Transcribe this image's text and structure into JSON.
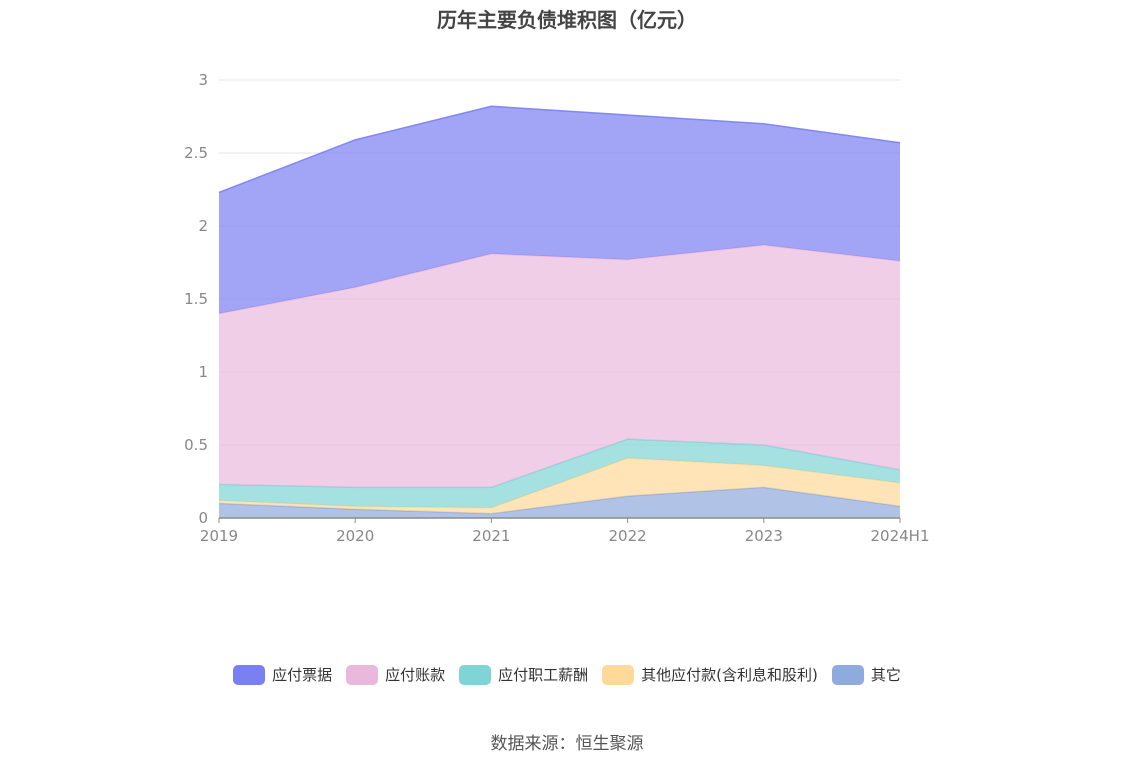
{
  "chart_data": {
    "type": "area",
    "stacked": true,
    "title": "历年主要负债堆积图（亿元）",
    "xlabel": "",
    "ylabel": "",
    "categories": [
      "2019",
      "2020",
      "2021",
      "2022",
      "2023",
      "2024H1"
    ],
    "ylim": [
      0,
      3
    ],
    "yticks": [
      "0",
      "0.5",
      "1",
      "1.5",
      "2",
      "2.5",
      "3"
    ],
    "grid": true,
    "legend_position": "bottom",
    "series": [
      {
        "name": "其它",
        "color": "#8FAADC",
        "values": [
          0.1,
          0.06,
          0.03,
          0.15,
          0.21,
          0.08
        ]
      },
      {
        "name": "其他应付款(含利息和股利)",
        "color": "#FFD99A",
        "values": [
          0.02,
          0.02,
          0.04,
          0.26,
          0.15,
          0.16
        ]
      },
      {
        "name": "应付职工薪酬",
        "color": "#80D4D6",
        "values": [
          0.11,
          0.13,
          0.14,
          0.13,
          0.14,
          0.09
        ]
      },
      {
        "name": "应付账款",
        "color": "#E9B9DD",
        "values": [
          1.17,
          1.37,
          1.6,
          1.23,
          1.37,
          1.43
        ]
      },
      {
        "name": "应付票据",
        "color": "#7A7FF2",
        "values": [
          0.83,
          1.01,
          1.01,
          0.99,
          0.83,
          0.81
        ]
      }
    ],
    "legend_order": [
      "应付票据",
      "应付账款",
      "应付职工薪酬",
      "其他应付款(含利息和股利)",
      "其它"
    ],
    "source_text": "数据来源：恒生聚源"
  }
}
